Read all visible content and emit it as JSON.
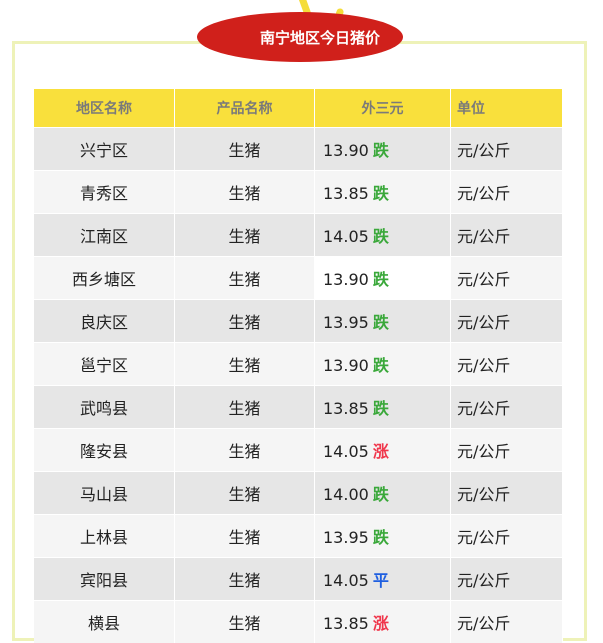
{
  "title": "南宁地区今日猪价",
  "headers": [
    "地区名称",
    "产品名称",
    "外三元",
    "单位"
  ],
  "colors": {
    "down": "#3aa83a",
    "up": "#f0364b",
    "flat": "#1f5fe0",
    "header": "#f9e03c",
    "badge": "#d0201b"
  },
  "rows": [
    {
      "region": "兴宁区",
      "product": "生猪",
      "price": "13.90",
      "trend": "跌",
      "type": "down",
      "unit": "元/公斤"
    },
    {
      "region": "青秀区",
      "product": "生猪",
      "price": "13.85",
      "trend": "跌",
      "type": "down",
      "unit": "元/公斤"
    },
    {
      "region": "江南区",
      "product": "生猪",
      "price": "14.05",
      "trend": "跌",
      "type": "down",
      "unit": "元/公斤"
    },
    {
      "region": "西乡塘区",
      "product": "生猪",
      "price": "13.90",
      "trend": "跌",
      "type": "down",
      "unit": "元/公斤"
    },
    {
      "region": "良庆区",
      "product": "生猪",
      "price": "13.95",
      "trend": "跌",
      "type": "down",
      "unit": "元/公斤"
    },
    {
      "region": "邕宁区",
      "product": "生猪",
      "price": "13.90",
      "trend": "跌",
      "type": "down",
      "unit": "元/公斤"
    },
    {
      "region": "武鸣县",
      "product": "生猪",
      "price": "13.85",
      "trend": "跌",
      "type": "down",
      "unit": "元/公斤"
    },
    {
      "region": "隆安县",
      "product": "生猪",
      "price": "14.05",
      "trend": "涨",
      "type": "up",
      "unit": "元/公斤"
    },
    {
      "region": "马山县",
      "product": "生猪",
      "price": "14.00",
      "trend": "跌",
      "type": "down",
      "unit": "元/公斤"
    },
    {
      "region": "上林县",
      "product": "生猪",
      "price": "13.95",
      "trend": "跌",
      "type": "down",
      "unit": "元/公斤"
    },
    {
      "region": "宾阳县",
      "product": "生猪",
      "price": "14.05",
      "trend": "平",
      "type": "flat",
      "unit": "元/公斤"
    },
    {
      "region": "横县",
      "product": "生猪",
      "price": "13.85",
      "trend": "涨",
      "type": "up",
      "unit": "元/公斤"
    }
  ]
}
